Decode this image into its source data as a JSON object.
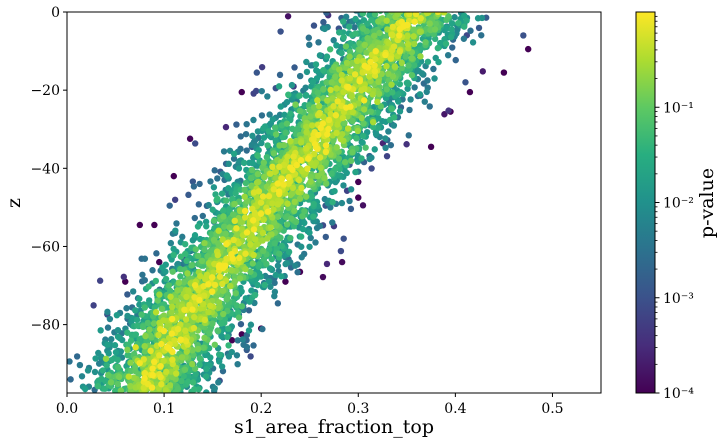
{
  "chart_data": {
    "type": "scatter",
    "title": "",
    "xlabel": "s1_area_fraction_top",
    "ylabel": "z",
    "xlim": [
      0.0,
      0.55
    ],
    "ylim": [
      -97.5,
      0
    ],
    "xticks": [
      0.0,
      0.1,
      0.2,
      0.3,
      0.4,
      0.5
    ],
    "xtick_labels": [
      "0.0",
      "0.1",
      "0.2",
      "0.3",
      "0.4",
      "0.5"
    ],
    "yticks": [
      0,
      -20,
      -40,
      -60,
      -80
    ],
    "ytick_labels": [
      "0",
      "−20",
      "−40",
      "−60",
      "−80"
    ],
    "grid": false,
    "legend": "none",
    "colorbar": {
      "label": "p-value",
      "scale": "log",
      "range": [
        0.0001,
        1.0
      ],
      "colormap": "viridis",
      "ticks": [
        0.0001,
        0.001,
        0.01,
        0.1
      ],
      "tick_labels": [
        "10⁻⁴",
        "10⁻³",
        "10⁻²",
        "10⁻¹"
      ]
    },
    "trend": {
      "description": "z increases roughly linearly with s1_area_fraction_top",
      "points": [
        [
          0.08,
          -95
        ],
        [
          0.13,
          -75
        ],
        [
          0.19,
          -55
        ],
        [
          0.25,
          -35
        ],
        [
          0.31,
          -15
        ],
        [
          0.36,
          0
        ]
      ],
      "core_p_value": 0.3,
      "edge_p_value": 0.001
    },
    "outliers": [
      {
        "x": 0.075,
        "y": -54.5,
        "p": 0.0001
      },
      {
        "x": 0.09,
        "y": -54.5,
        "p": 0.0001
      },
      {
        "x": 0.11,
        "y": -42,
        "p": 0.0001
      },
      {
        "x": 0.06,
        "y": -69,
        "p": 0.0001
      },
      {
        "x": 0.095,
        "y": -64,
        "p": 0.0001
      },
      {
        "x": 0.18,
        "y": -20.5,
        "p": 0.0001
      },
      {
        "x": 0.225,
        "y": -69,
        "p": 0.0001
      },
      {
        "x": 0.24,
        "y": -66.5,
        "p": 0.0001
      },
      {
        "x": 0.2,
        "y": -81,
        "p": 0.0001
      },
      {
        "x": 0.18,
        "y": -82.5,
        "p": 0.0001
      },
      {
        "x": 0.17,
        "y": -84,
        "p": 0.0001
      },
      {
        "x": 0.3,
        "y": -47.5,
        "p": 0.0001
      },
      {
        "x": 0.3,
        "y": -43.5,
        "p": 0.0001
      },
      {
        "x": 0.375,
        "y": -34.5,
        "p": 0.0001
      },
      {
        "x": 0.415,
        "y": -20.5,
        "p": 0.0001
      },
      {
        "x": 0.475,
        "y": -9.5,
        "p": 0.0001
      },
      {
        "x": 0.45,
        "y": -15.5,
        "p": 0.0001
      },
      {
        "x": 0.395,
        "y": -25.5,
        "p": 0.0001
      },
      {
        "x": 0.215,
        "y": -19.5,
        "p": 0.001
      },
      {
        "x": 0.22,
        "y": -5,
        "p": 0.001
      },
      {
        "x": 0.47,
        "y": -6,
        "p": 0.001
      },
      {
        "x": 0.285,
        "y": -58,
        "p": 0.001
      },
      {
        "x": 0.12,
        "y": -63,
        "p": 0.001
      }
    ]
  }
}
